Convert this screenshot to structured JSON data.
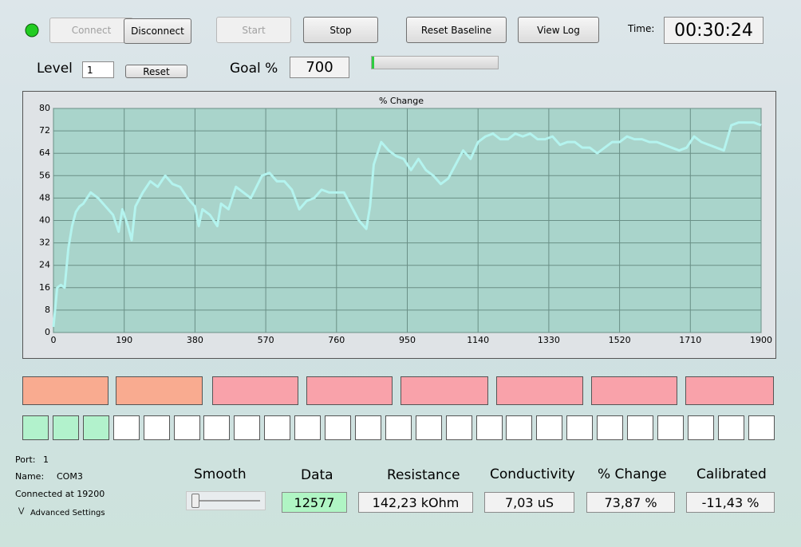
{
  "toolbar": {
    "connect": "Connect",
    "disconnect": "Disconnect",
    "start": "Start",
    "stop": "Stop",
    "reset_baseline": "Reset Baseline",
    "view_log": "View Log",
    "time_label": "Time:",
    "time": "00:30:24"
  },
  "level": {
    "label": "Level",
    "value": "1",
    "reset": "Reset",
    "goal_label": "Goal %",
    "goal": "700"
  },
  "chart_data": {
    "type": "line",
    "title": "% Change",
    "x": [
      0,
      10,
      20,
      30,
      40,
      50,
      60,
      70,
      80,
      100,
      120,
      140,
      160,
      175,
      185,
      200,
      210,
      220,
      240,
      260,
      280,
      300,
      320,
      340,
      360,
      380,
      390,
      400,
      420,
      440,
      450,
      470,
      490,
      510,
      530,
      560,
      580,
      600,
      620,
      640,
      660,
      680,
      700,
      720,
      740,
      760,
      780,
      800,
      820,
      840,
      850,
      860,
      880,
      900,
      920,
      940,
      960,
      980,
      1000,
      1020,
      1040,
      1060,
      1080,
      1100,
      1120,
      1140,
      1160,
      1180,
      1200,
      1220,
      1240,
      1260,
      1280,
      1300,
      1320,
      1340,
      1360,
      1380,
      1400,
      1420,
      1440,
      1460,
      1480,
      1500,
      1520,
      1540,
      1560,
      1580,
      1600,
      1620,
      1640,
      1660,
      1680,
      1700,
      1720,
      1740,
      1760,
      1780,
      1800,
      1820,
      1840,
      1860,
      1880,
      1900
    ],
    "series": [
      {
        "color": "#b4f4ef",
        "values": [
          2,
          16,
          17,
          16,
          30,
          38,
          43,
          45,
          46,
          50,
          48,
          45,
          42,
          36,
          44,
          38,
          33,
          45,
          50,
          54,
          52,
          56,
          53,
          52,
          48,
          45,
          38,
          44,
          42,
          38,
          46,
          44,
          52,
          50,
          48,
          56,
          57,
          54,
          54,
          51,
          44,
          47,
          48,
          51,
          50,
          50,
          50,
          45,
          40,
          37,
          45,
          60,
          68,
          65,
          63,
          62,
          58,
          62,
          58,
          56,
          53,
          55,
          60,
          65,
          62,
          68,
          70,
          71,
          69,
          69,
          71,
          70,
          71,
          69,
          69,
          70,
          67,
          68,
          68,
          66,
          66,
          64,
          66,
          68,
          68,
          70,
          69,
          69,
          68,
          68,
          67,
          66,
          65,
          66,
          70,
          68,
          67,
          66,
          65,
          74,
          75,
          75,
          75,
          74
        ]
      }
    ],
    "xlim": [
      0,
      1900
    ],
    "ylim": [
      0,
      80
    ],
    "xticks": [
      0,
      190,
      380,
      570,
      760,
      950,
      1140,
      1330,
      1520,
      1710,
      1900
    ],
    "yticks": [
      0,
      8,
      16,
      24,
      32,
      40,
      48,
      56,
      64,
      72,
      80
    ],
    "grid": true
  },
  "status": {
    "port_label": "Port:",
    "port": "1",
    "name_label": "Name:",
    "name": "COM3",
    "connected": "Connected at 19200",
    "advanced": "Advanced Settings"
  },
  "readouts": {
    "smooth_label": "Smooth",
    "data_label": "Data",
    "data": "12577",
    "resistance_label": "Resistance",
    "resistance": "142,23 kOhm",
    "conductivity_label": "Conductivity",
    "conductivity": "7,03 uS",
    "change_label": "% Change",
    "change": "73,87 %",
    "calibrated_label": "Calibrated",
    "calibrated": "-11,43 %"
  }
}
